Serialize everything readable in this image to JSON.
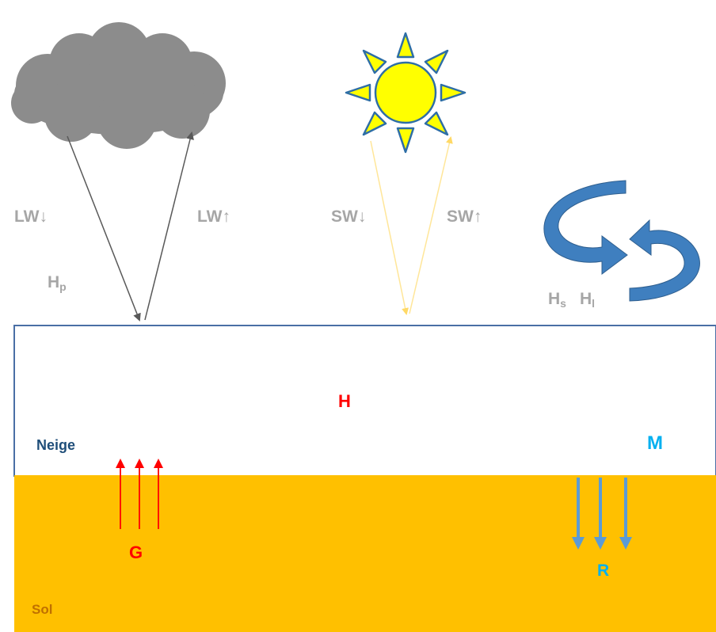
{
  "labels": {
    "lw_down": "LW↓",
    "lw_up": "LW↑",
    "sw_down": "SW↓",
    "sw_up": "SW↑",
    "hp": {
      "base": "H",
      "sub": "p"
    },
    "hs": {
      "base": "H",
      "sub": "s"
    },
    "hl": {
      "base": "H",
      "sub": "l"
    },
    "h": "H",
    "neige": "Neige",
    "m": "M",
    "g": "G",
    "r": "R",
    "sol": "Sol"
  },
  "colors": {
    "snow": "#ffffff",
    "soil": "#ffc000",
    "snow_border": "#4a6fa5",
    "cloud": "#8c8c8c",
    "sun": "#ffff00",
    "sun_outline": "#2e6ea6",
    "heat_flux": "#ff0000",
    "melt": "#5b9bd5",
    "turbulent_arrow": "#3f7fbf",
    "label_grey": "#a6a6a6",
    "neige_text": "#1f4e79",
    "sol_text": "#c07000"
  },
  "icons": [
    "cloud-icon",
    "sun-icon",
    "turbulent-flux-icon"
  ]
}
